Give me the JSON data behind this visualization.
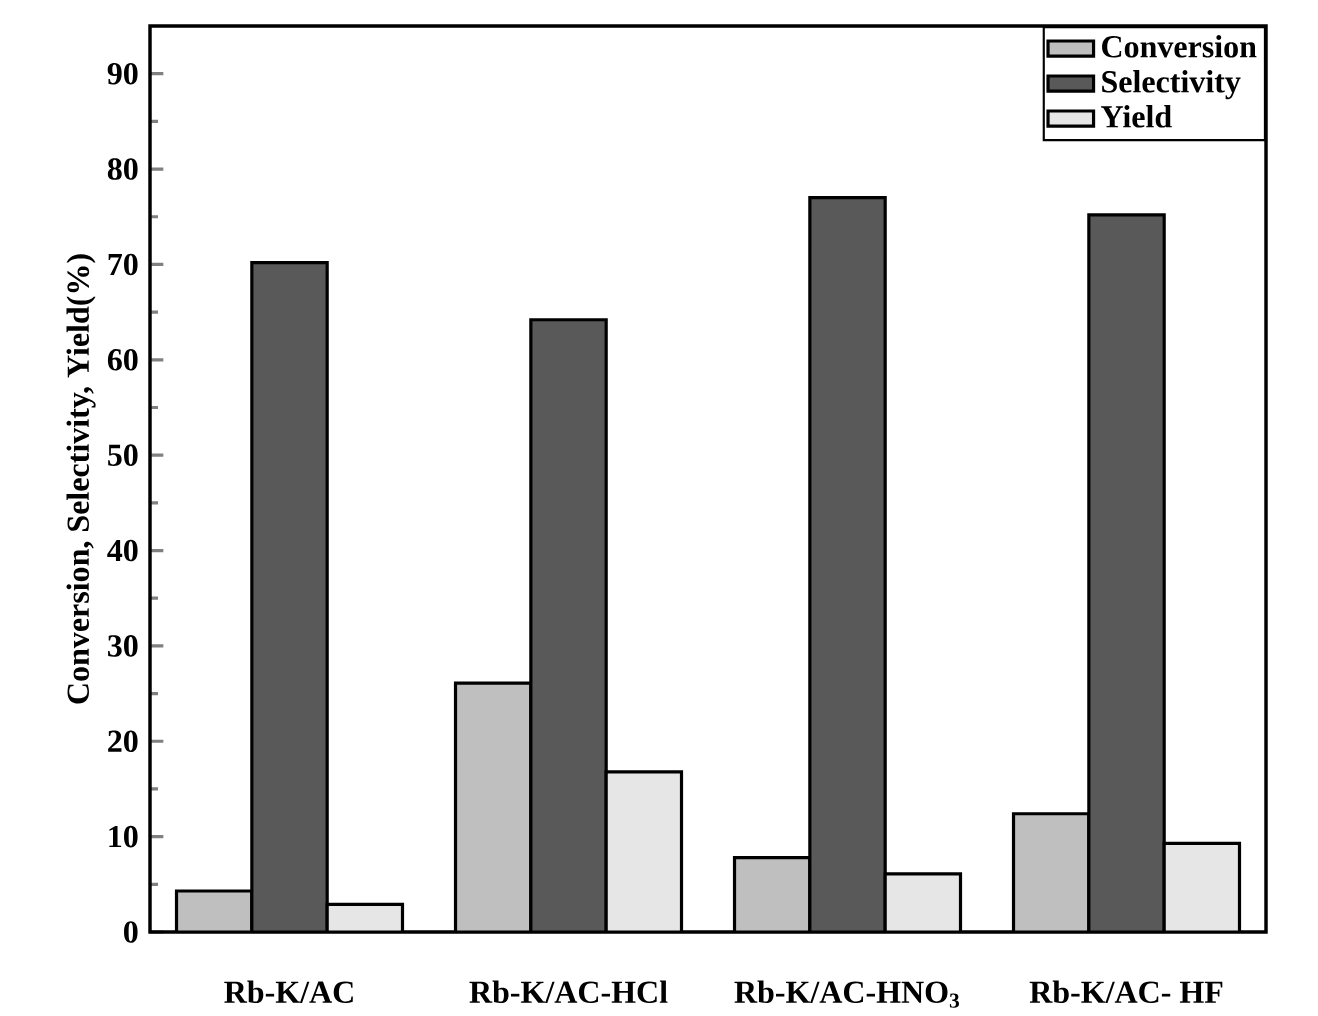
{
  "chart_data": {
    "type": "bar",
    "ylabel": "Conversion, Selectivity, Yield(%)",
    "categories": [
      "Rb-K/AC",
      "Rb-K/AC-HCl",
      "Rb-K/AC-HNO$_{3}$",
      "Rb-K/AC- HF"
    ],
    "series": [
      {
        "name": "Conversion",
        "color": "#bfbfbf",
        "values": [
          4.3,
          26.1,
          7.8,
          12.4
        ]
      },
      {
        "name": "Selectivity",
        "color": "#595959",
        "values": [
          70.2,
          64.2,
          77.0,
          75.2
        ]
      },
      {
        "name": "Yield",
        "color": "#e6e6e6",
        "values": [
          2.9,
          16.8,
          6.1,
          9.3
        ]
      }
    ],
    "ylim": [
      0,
      95
    ],
    "yticks": [
      0,
      10,
      20,
      30,
      40,
      50,
      60,
      70,
      80,
      90
    ],
    "legend": "top right"
  }
}
